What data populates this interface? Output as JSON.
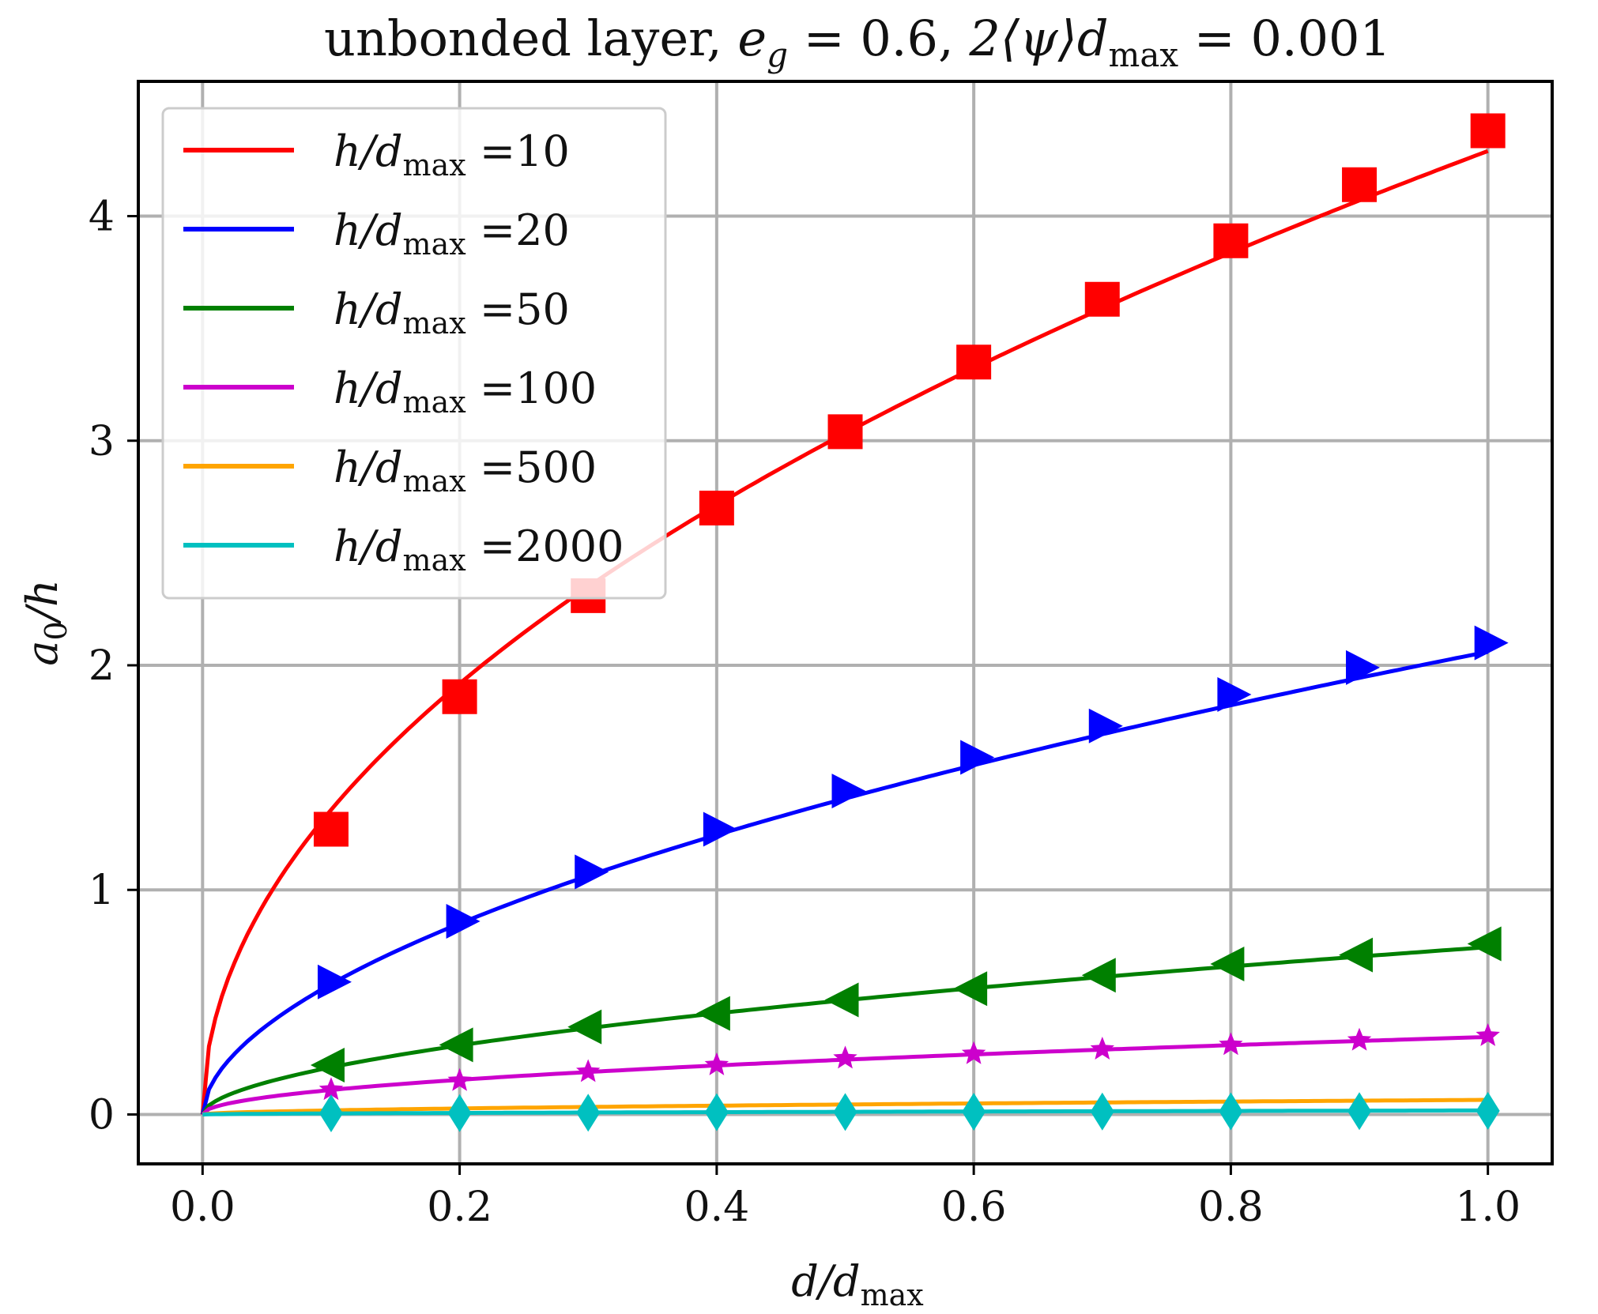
{
  "chart_data": {
    "type": "line",
    "title": {
      "prefix": "unbonded layer, ",
      "eg_symbol": "e",
      "eg_sub": "g",
      "eg_value": " = 0.6, ",
      "psi_text": "2⟨ψ⟩",
      "d_symbol": "d",
      "d_sub": "max",
      "psi_value": " = 0.001"
    },
    "xlabel": {
      "main": "d/d",
      "sub": "max"
    },
    "ylabel": {
      "main": "a",
      "sub": "0",
      "rest": "/h"
    },
    "xlim": [
      -0.05,
      1.05
    ],
    "ylim": [
      -0.22,
      4.6
    ],
    "xticks": [
      0.0,
      0.2,
      0.4,
      0.6,
      0.8,
      1.0
    ],
    "xtick_labels": [
      "0.0",
      "0.2",
      "0.4",
      "0.6",
      "0.8",
      "1.0"
    ],
    "yticks": [
      0,
      1,
      2,
      3,
      4
    ],
    "ytick_labels": [
      "0",
      "1",
      "2",
      "3",
      "4"
    ],
    "grid": true,
    "legend_position": "top-left",
    "marker_x": [
      0.1,
      0.2,
      0.3,
      0.4,
      0.5,
      0.6,
      0.7,
      0.8,
      0.9,
      1.0
    ],
    "series": [
      {
        "name": "h/d_max =10",
        "label_main": "h/d",
        "label_sub": "max",
        "label_value": " =10",
        "color": "#ff0000",
        "marker": "square",
        "line_coeff": 4.29,
        "line_exp": 0.5,
        "marker_values": [
          1.27,
          1.86,
          2.31,
          2.7,
          3.04,
          3.35,
          3.63,
          3.89,
          4.14,
          4.38
        ]
      },
      {
        "name": "h/d_max =20",
        "label_main": "h/d",
        "label_sub": "max",
        "label_value": " =20",
        "color": "#0000ff",
        "marker": "triangle-right",
        "line_coeff": 2.06,
        "line_exp": 0.55,
        "marker_values": [
          0.59,
          0.86,
          1.08,
          1.27,
          1.44,
          1.59,
          1.73,
          1.87,
          1.99,
          2.1
        ]
      },
      {
        "name": "h/d_max =50",
        "label_main": "h/d",
        "label_sub": "max",
        "label_value": " =50",
        "color": "#008000",
        "marker": "triangle-left",
        "line_coeff": 0.745,
        "line_exp": 0.55,
        "marker_values": [
          0.22,
          0.31,
          0.39,
          0.45,
          0.51,
          0.56,
          0.62,
          0.67,
          0.71,
          0.76
        ]
      },
      {
        "name": "h/d_max =100",
        "label_main": "h/d",
        "label_sub": "max",
        "label_value": " =100",
        "color": "#cc00cc",
        "marker": "star",
        "line_coeff": 0.345,
        "line_exp": 0.5,
        "marker_values": [
          0.11,
          0.15,
          0.19,
          0.22,
          0.25,
          0.27,
          0.29,
          0.31,
          0.33,
          0.35
        ]
      },
      {
        "name": "h/d_max =500",
        "label_main": "h/d",
        "label_sub": "max",
        "label_value": " =500",
        "color": "#ffa500",
        "marker": "diamond",
        "line_coeff": 0.065,
        "line_exp": 0.55,
        "marker_values": []
      },
      {
        "name": "h/d_max =2000",
        "label_main": "h/d",
        "label_sub": "max",
        "label_value": " =2000",
        "color": "#00c0c0",
        "marker": "diamond",
        "line_coeff": 0.018,
        "line_exp": 0.6,
        "marker_values": [
          0.005,
          0.006,
          0.008,
          0.01,
          0.011,
          0.012,
          0.013,
          0.014,
          0.015,
          0.016
        ]
      }
    ]
  }
}
